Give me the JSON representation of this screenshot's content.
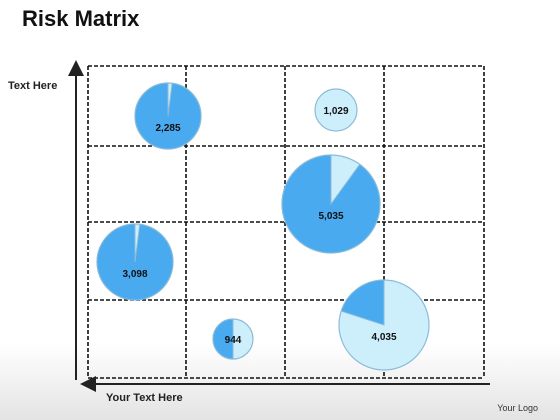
{
  "title": "Risk Matrix",
  "footer_logo": "Your Logo",
  "colors": {
    "filled": "#4aaaf0",
    "light": "#cdeefb",
    "stroke": "#8bbcd8",
    "grid": "#111111"
  },
  "chart_data": {
    "type": "pie",
    "subtype": "bubble-pie matrix",
    "title": "Risk Matrix",
    "xlabel": "Your Text Here",
    "ylabel": "Text Here",
    "grid": {
      "columns": 4,
      "rows": 4,
      "style": "dashed"
    },
    "bubbles": [
      {
        "label": "2,285",
        "filled_fraction": 0.98
      },
      {
        "label": "1,029",
        "filled_fraction": 0.0
      },
      {
        "label": "5,035",
        "filled_fraction": 0.9
      },
      {
        "label": "3,098",
        "filled_fraction": 0.98
      },
      {
        "label": "944",
        "filled_fraction": 0.5
      },
      {
        "label": "4,035",
        "filled_fraction": 0.2
      }
    ]
  }
}
